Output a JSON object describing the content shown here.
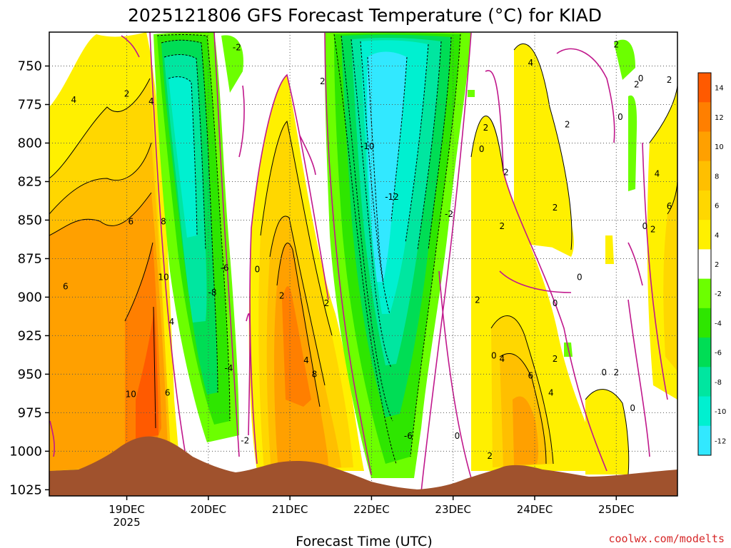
{
  "chart_data": {
    "type": "heatmap",
    "title": "2025121806 GFS Forecast Temperature (°C) for KIAD",
    "xlabel": "Forecast Time (UTC)",
    "ylabel": "",
    "credit": "coolwx.com/modelts",
    "y_axis": {
      "ticks": [
        750,
        775,
        800,
        825,
        850,
        875,
        900,
        925,
        950,
        975,
        1000,
        1025
      ],
      "range_top": 728,
      "range_bottom": 1029,
      "inverted": true,
      "gridlines": true
    },
    "x_axis": {
      "ticks": [
        {
          "label": "19DEC",
          "sublabel": "2025",
          "day": 19
        },
        {
          "label": "20DEC",
          "sublabel": "",
          "day": 20
        },
        {
          "label": "21DEC",
          "sublabel": "",
          "day": 21
        },
        {
          "label": "22DEC",
          "sublabel": "",
          "day": 22
        },
        {
          "label": "23DEC",
          "sublabel": "",
          "day": 23
        },
        {
          "label": "24DEC",
          "sublabel": "",
          "day": 24
        },
        {
          "label": "25DEC",
          "sublabel": "",
          "day": 25
        }
      ],
      "range_start": 18.05,
      "range_end": 25.75,
      "gridlines": true
    },
    "colorbar": {
      "labels": [
        "14",
        "12",
        "10",
        "8",
        "6",
        "4",
        "2",
        "-2",
        "-4",
        "-6",
        "-8",
        "-10",
        "-12"
      ],
      "colors": [
        "#ff5a00",
        "#ff7f00",
        "#ffa000",
        "#ffbf00",
        "#ffd700",
        "#fff000",
        "#ffffff",
        "#6cff00",
        "#2ee600",
        "#00dd55",
        "#00e6a0",
        "#00f0d0",
        "#32e8ff"
      ]
    },
    "colors": {
      "terrain": "#a0522d",
      "warm_contour": "#000000",
      "cold_contour": "#000000",
      "zero_contour": "#c0188c"
    },
    "contour_labels": [
      {
        "text": "-2",
        "x": 20.35,
        "y": 738
      },
      {
        "text": "2",
        "x": 19.0,
        "y": 768
      },
      {
        "text": "4",
        "x": 18.35,
        "y": 772
      },
      {
        "text": "4",
        "x": 19.3,
        "y": 773
      },
      {
        "text": "6",
        "x": 19.05,
        "y": 851
      },
      {
        "text": "8",
        "x": 19.45,
        "y": 851
      },
      {
        "text": "6",
        "x": 18.25,
        "y": 893
      },
      {
        "text": "10",
        "x": 19.45,
        "y": 887
      },
      {
        "text": "4",
        "x": 19.55,
        "y": 916
      },
      {
        "text": "10",
        "x": 19.05,
        "y": 963
      },
      {
        "text": "6",
        "x": 19.5,
        "y": 962
      },
      {
        "text": "-6",
        "x": 20.2,
        "y": 881
      },
      {
        "text": "-8",
        "x": 20.05,
        "y": 897
      },
      {
        "text": "0",
        "x": 20.6,
        "y": 882
      },
      {
        "text": "-4",
        "x": 20.25,
        "y": 946
      },
      {
        "text": "-2",
        "x": 20.45,
        "y": 993
      },
      {
        "text": "2",
        "x": 20.9,
        "y": 899
      },
      {
        "text": "2",
        "x": 21.45,
        "y": 904
      },
      {
        "text": "4",
        "x": 21.2,
        "y": 941
      },
      {
        "text": "8",
        "x": 21.3,
        "y": 950
      },
      {
        "text": "2",
        "x": 21.4,
        "y": 760
      },
      {
        "text": "-10",
        "x": 21.95,
        "y": 802
      },
      {
        "text": "-12",
        "x": 22.25,
        "y": 835
      },
      {
        "text": "-2",
        "x": 22.95,
        "y": 846
      },
      {
        "text": "-6",
        "x": 22.45,
        "y": 990
      },
      {
        "text": "0",
        "x": 23.05,
        "y": 990
      },
      {
        "text": "2",
        "x": 23.4,
        "y": 790
      },
      {
        "text": "0",
        "x": 23.35,
        "y": 804
      },
      {
        "text": "2",
        "x": 23.3,
        "y": 902
      },
      {
        "text": "2",
        "x": 23.65,
        "y": 819
      },
      {
        "text": "2",
        "x": 23.6,
        "y": 854
      },
      {
        "text": "0",
        "x": 23.5,
        "y": 938
      },
      {
        "text": "4",
        "x": 23.6,
        "y": 940
      },
      {
        "text": "6",
        "x": 23.95,
        "y": 951
      },
      {
        "text": "4",
        "x": 24.2,
        "y": 962
      },
      {
        "text": "2",
        "x": 24.25,
        "y": 940
      },
      {
        "text": "2",
        "x": 23.45,
        "y": 1003
      },
      {
        "text": "4",
        "x": 23.95,
        "y": 748
      },
      {
        "text": "2",
        "x": 24.4,
        "y": 788
      },
      {
        "text": "2",
        "x": 24.25,
        "y": 842
      },
      {
        "text": "0",
        "x": 24.55,
        "y": 887
      },
      {
        "text": "0",
        "x": 24.25,
        "y": 904
      },
      {
        "text": "0",
        "x": 24.85,
        "y": 949
      },
      {
        "text": "2",
        "x": 25.0,
        "y": 949
      },
      {
        "text": "0",
        "x": 25.2,
        "y": 972
      },
      {
        "text": "2",
        "x": 25.0,
        "y": 736
      },
      {
        "text": "0",
        "x": 25.3,
        "y": 758
      },
      {
        "text": "2",
        "x": 25.25,
        "y": 762
      },
      {
        "text": "2",
        "x": 25.65,
        "y": 759
      },
      {
        "text": "0",
        "x": 25.05,
        "y": 783
      },
      {
        "text": "4",
        "x": 25.5,
        "y": 820
      },
      {
        "text": "6",
        "x": 25.65,
        "y": 841
      },
      {
        "text": "0",
        "x": 25.35,
        "y": 854
      },
      {
        "text": "2",
        "x": 25.45,
        "y": 856
      }
    ]
  }
}
